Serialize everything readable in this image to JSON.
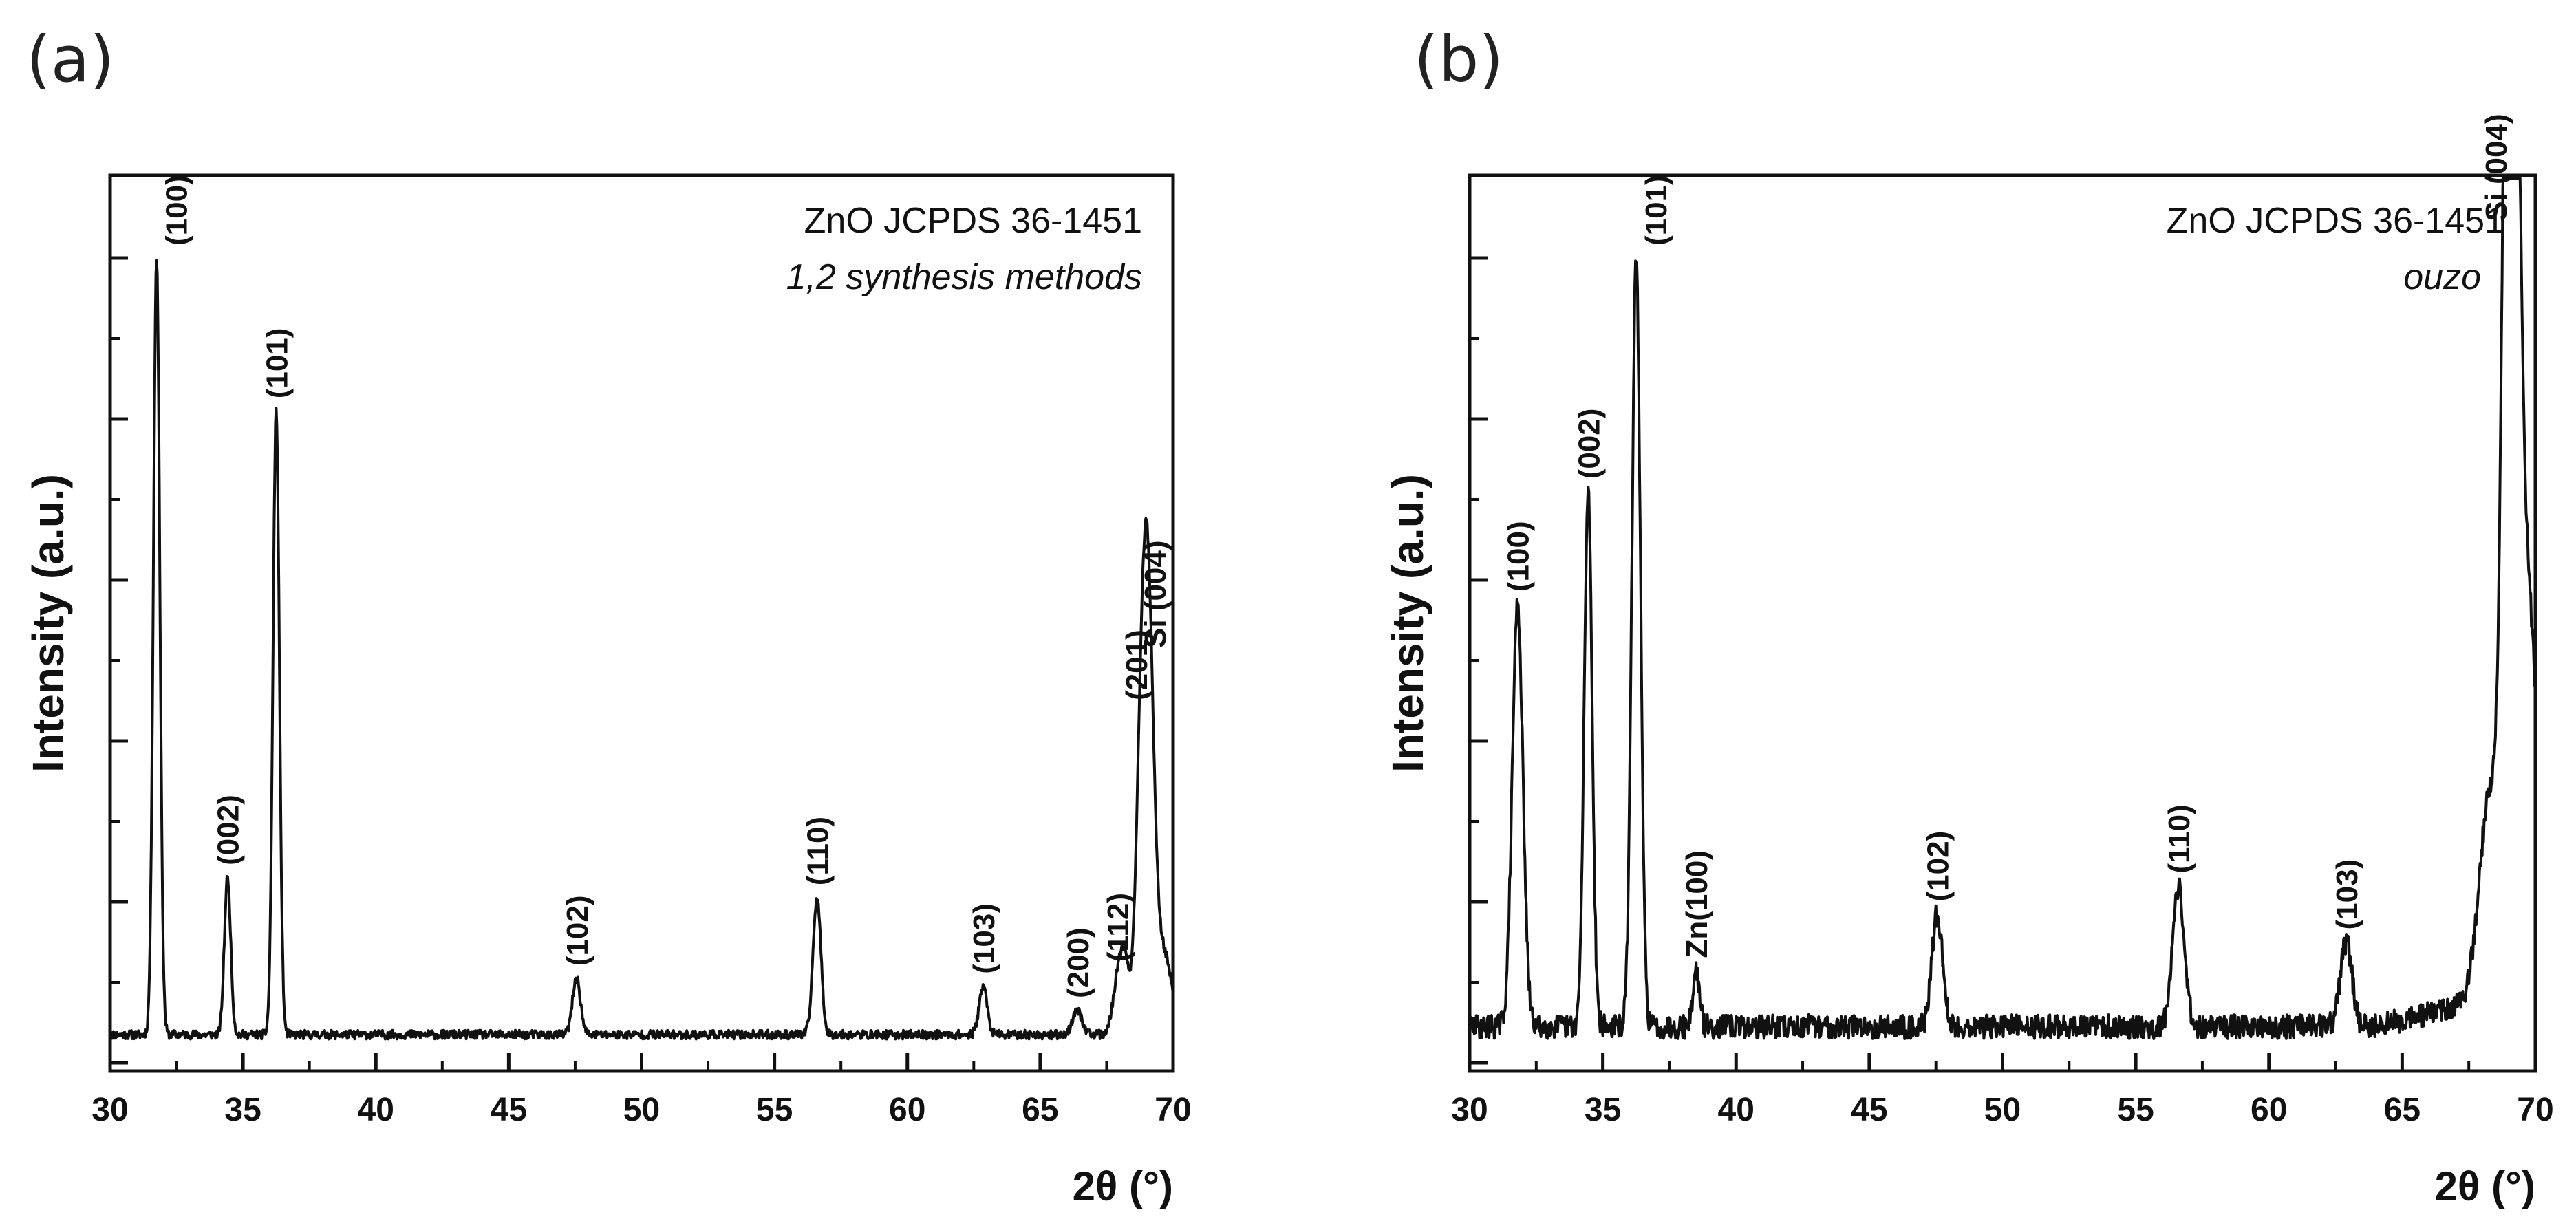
{
  "chart_data": [
    {
      "type": "line",
      "panel_label": "(a)",
      "title": "",
      "xlabel": "2θ (°)",
      "ylabel": "Intensity (a.u.)",
      "xlim": [
        30,
        70
      ],
      "ylim": [
        0,
        100
      ],
      "x_ticks": [
        30,
        35,
        40,
        45,
        50,
        55,
        60,
        65,
        70
      ],
      "y_tick_labels_shown": false,
      "legend_lines": [
        "ZnO JCPDS 36-1451",
        "1,2 synthesis methods"
      ],
      "baseline": 3.5,
      "series": [
        {
          "name": "ZnO (methods 1,2)",
          "peaks": [
            {
              "x": 31.75,
              "y": 100,
              "width": 0.12
            },
            {
              "x": 34.42,
              "y": 23,
              "width": 0.12
            },
            {
              "x": 36.25,
              "y": 81,
              "width": 0.12
            },
            {
              "x": 47.55,
              "y": 10.5,
              "width": 0.15
            },
            {
              "x": 56.6,
              "y": 20.5,
              "width": 0.15
            },
            {
              "x": 62.85,
              "y": 9.5,
              "width": 0.15
            },
            {
              "x": 66.4,
              "y": 6.5,
              "width": 0.18
            },
            {
              "x": 67.95,
              "y": 11,
              "width": 0.2
            },
            {
              "x": 68.2,
              "y": 10,
              "width": 0.15
            },
            {
              "x": 68.85,
              "y": 43.5,
              "width": 0.22
            },
            {
              "x": 69.1,
              "y": 37,
              "width": 0.2
            },
            {
              "x": 69.6,
              "y": 14,
              "width": 0.35
            }
          ]
        }
      ],
      "annotations": [
        {
          "text": "(100)",
          "x": 31.75,
          "y": 100
        },
        {
          "text": "(002)",
          "x": 34.42,
          "y": 23
        },
        {
          "text": "(101)",
          "x": 36.25,
          "y": 81
        },
        {
          "text": "(102)",
          "x": 47.55,
          "y": 10.5
        },
        {
          "text": "(110)",
          "x": 56.6,
          "y": 20.5
        },
        {
          "text": "(103)",
          "x": 62.85,
          "y": 9.5
        },
        {
          "text": "(200)",
          "x": 66.4,
          "y": 6.5
        },
        {
          "text": "(112)",
          "x": 67.9,
          "y": 11
        },
        {
          "text": "(201)",
          "x": 68.6,
          "y": 43.5
        },
        {
          "text": "Si (004)",
          "x": 69.3,
          "y": 50
        }
      ]
    },
    {
      "type": "line",
      "panel_label": "(b)",
      "title": "",
      "xlabel": "2θ (°)",
      "ylabel": "Intensity (a.u.)",
      "xlim": [
        30,
        70
      ],
      "ylim": [
        0,
        100
      ],
      "x_ticks": [
        30,
        35,
        40,
        45,
        50,
        55,
        60,
        65,
        70
      ],
      "y_tick_labels_shown": false,
      "legend_lines": [
        "ZnO JCPDS 36-1451",
        "ouzo"
      ],
      "baseline": 4.5,
      "series": [
        {
          "name": "ZnO (ouzo)",
          "peaks": [
            {
              "x": 31.8,
              "y": 57,
              "width": 0.2
            },
            {
              "x": 34.45,
              "y": 71,
              "width": 0.15
            },
            {
              "x": 36.25,
              "y": 100,
              "width": 0.16
            },
            {
              "x": 38.5,
              "y": 11.5,
              "width": 0.12
            },
            {
              "x": 47.55,
              "y": 18.5,
              "width": 0.2
            },
            {
              "x": 56.6,
              "y": 22,
              "width": 0.22
            },
            {
              "x": 62.9,
              "y": 15,
              "width": 0.22
            },
            {
              "x": 68.3,
              "y": 30,
              "width": 0.4
            },
            {
              "x": 68.95,
              "y": 103,
              "width": 0.2
            },
            {
              "x": 69.2,
              "y": 95,
              "width": 0.2
            },
            {
              "x": 69.6,
              "y": 58,
              "width": 0.45
            }
          ]
        }
      ],
      "annotations": [
        {
          "text": "(100)",
          "x": 31.8,
          "y": 57
        },
        {
          "text": "(002)",
          "x": 34.45,
          "y": 71
        },
        {
          "text": "(101)",
          "x": 36.25,
          "y": 100
        },
        {
          "text": "Zn(100)",
          "x": 38.5,
          "y": 11.5
        },
        {
          "text": "(102)",
          "x": 47.55,
          "y": 18.5
        },
        {
          "text": "(110)",
          "x": 56.6,
          "y": 22
        },
        {
          "text": "(103)",
          "x": 62.9,
          "y": 15
        },
        {
          "text": "Si (004)",
          "x": 68.5,
          "y": 103
        }
      ]
    }
  ]
}
